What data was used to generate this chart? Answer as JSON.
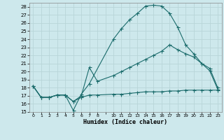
{
  "xlabel": "Humidex (Indice chaleur)",
  "bg_color": "#cde8ec",
  "grid_color": "#b8d5d8",
  "line_color": "#1a6b6b",
  "ylim": [
    15,
    28.5
  ],
  "xlim": [
    -0.5,
    23.5
  ],
  "yticks": [
    15,
    16,
    17,
    18,
    19,
    20,
    21,
    22,
    23,
    24,
    25,
    26,
    27,
    28
  ],
  "xtick_labels": [
    "0",
    "1",
    "2",
    "3",
    "4",
    "5",
    "6",
    "7",
    "8",
    "",
    "10",
    "11",
    "12",
    "13",
    "14",
    "15",
    "16",
    "17",
    "18",
    "19",
    "20",
    "21",
    "22",
    "23"
  ],
  "xtick_positions": [
    0,
    1,
    2,
    3,
    4,
    5,
    6,
    7,
    8,
    9,
    10,
    11,
    12,
    13,
    14,
    15,
    16,
    17,
    18,
    19,
    20,
    21,
    22,
    23
  ],
  "curve1_x": [
    0,
    1,
    2,
    3,
    4,
    5,
    6,
    7,
    10,
    11,
    12,
    13,
    14,
    15,
    16,
    17,
    18,
    19,
    20,
    21,
    22,
    23
  ],
  "curve1_y": [
    18.2,
    16.8,
    16.8,
    17.1,
    17.1,
    15.2,
    17.2,
    18.5,
    24.0,
    25.3,
    26.4,
    27.2,
    28.1,
    28.2,
    28.1,
    27.2,
    25.5,
    23.3,
    22.2,
    21.0,
    20.1,
    17.8
  ],
  "curve2_x": [
    0,
    1,
    2,
    3,
    4,
    5,
    6,
    7,
    8,
    10,
    11,
    12,
    13,
    14,
    15,
    16,
    17,
    18,
    19,
    20,
    21,
    22,
    23
  ],
  "curve2_y": [
    18.2,
    16.8,
    16.8,
    17.1,
    17.1,
    16.3,
    17.0,
    20.5,
    18.8,
    19.5,
    20.0,
    20.5,
    21.0,
    21.5,
    22.0,
    22.5,
    23.3,
    22.7,
    22.2,
    21.8,
    21.0,
    20.4,
    18.0
  ],
  "curve3_x": [
    0,
    1,
    2,
    3,
    4,
    5,
    6,
    7,
    8,
    10,
    11,
    12,
    13,
    14,
    15,
    16,
    17,
    18,
    19,
    20,
    21,
    22,
    23
  ],
  "curve3_y": [
    18.2,
    16.8,
    16.8,
    17.1,
    17.1,
    16.3,
    16.8,
    17.1,
    17.1,
    17.2,
    17.2,
    17.3,
    17.4,
    17.5,
    17.5,
    17.5,
    17.6,
    17.6,
    17.7,
    17.7,
    17.7,
    17.7,
    17.7
  ]
}
